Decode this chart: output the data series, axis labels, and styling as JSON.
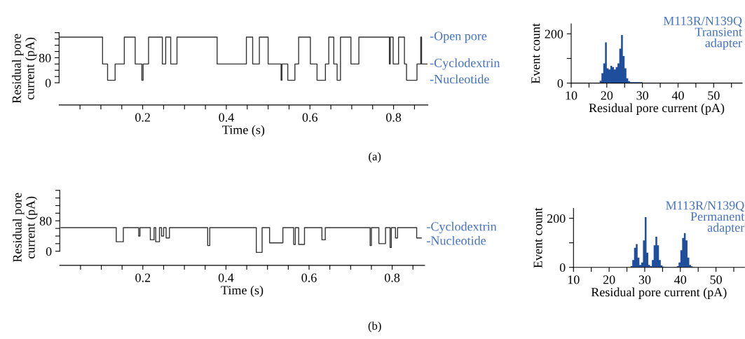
{
  "chart_data": [
    {
      "type": "step",
      "xlabel": "Time (s)",
      "ylabel": "Residual pore\ncurrent (pA)",
      "xlim": [
        0,
        0.882
      ],
      "ylim": [
        -71,
        162
      ],
      "xticks": [
        {
          "value": 0.05,
          "label": null
        },
        {
          "value": 0.1,
          "label": null
        },
        {
          "value": 0.15,
          "label": null
        },
        0.2,
        {
          "value": 0.25,
          "label": null
        },
        {
          "value": 0.3,
          "label": null
        },
        {
          "value": 0.35,
          "label": null
        },
        0.4,
        {
          "value": 0.45,
          "label": null
        },
        {
          "value": 0.5,
          "label": null
        },
        {
          "value": 0.55,
          "label": null
        },
        0.6,
        {
          "value": 0.65,
          "label": null
        },
        {
          "value": 0.7,
          "label": null
        },
        {
          "value": 0.75,
          "label": null
        },
        0.8,
        {
          "value": 0.85,
          "label": null
        }
      ],
      "yticks": [
        0,
        {
          "value": 20,
          "label": null
        },
        {
          "value": 40,
          "label": null
        },
        {
          "value": 60,
          "label": null
        },
        80,
        {
          "value": 100,
          "label": null
        },
        {
          "value": 120,
          "label": null
        },
        {
          "value": 140,
          "label": null
        },
        {
          "value": 160,
          "label": null
        }
      ],
      "series": [
        {
          "color": "#333333",
          "x": [
            0,
            0.104,
            0.116,
            0.134,
            0.156,
            0.182,
            0.198,
            0.201,
            0.214,
            0.247,
            0.255,
            0.267,
            0.282,
            0.378,
            0.448,
            0.463,
            0.479,
            0.5,
            0.531,
            0.533,
            0.547,
            0.564,
            0.573,
            0.601,
            0.617,
            0.637,
            0.645,
            0.657,
            0.665,
            0.673,
            0.698,
            0.717,
            0.79,
            0.792,
            0.799,
            0.812,
            0.826,
            0.831,
            0.856,
            0.865,
            0.867,
            0.88
          ],
          "values": [
            146,
            60,
            8,
            60,
            146,
            60,
            8,
            60,
            146,
            60,
            146,
            60,
            146,
            60,
            146,
            60,
            146,
            60,
            8,
            60,
            8,
            60,
            146,
            60,
            8,
            60,
            146,
            60,
            8,
            146,
            60,
            146,
            60,
            146,
            60,
            146,
            60,
            8,
            60,
            146,
            60,
            60
          ]
        }
      ],
      "annotations": [
        "-Open pore",
        "-Cyclodextrin",
        "-Nucleotide",
        "(a)"
      ]
    },
    {
      "type": "histogram",
      "xlabel": "Residual pore current (pA)",
      "ylabel": "Event count",
      "xlim": [
        10,
        58
      ],
      "ylim": [
        0,
        240
      ],
      "xticks": [
        10,
        {
          "value": 15,
          "label": null
        },
        20,
        {
          "value": 25,
          "label": null
        },
        30,
        {
          "value": 35,
          "label": null
        },
        40,
        {
          "value": 45,
          "label": null
        },
        50,
        {
          "value": 55,
          "label": null
        }
      ],
      "yticks": [
        0,
        {
          "value": 100,
          "label": null
        },
        200
      ],
      "color": "#1f4e9c",
      "bins": [
        17,
        18,
        18.5,
        19,
        19.5,
        20,
        20.5,
        21,
        21.5,
        22,
        22.5,
        23,
        23.5,
        24,
        24.5,
        25,
        25.5,
        26,
        26.5,
        27,
        30,
        50
      ],
      "values": [
        2,
        10,
        40,
        80,
        165,
        60,
        55,
        70,
        65,
        55,
        65,
        80,
        140,
        195,
        110,
        60,
        20,
        8,
        4,
        4,
        2
      ],
      "annotations": [
        "M113R/N139Q\nTransient\nadapter"
      ]
    },
    {
      "type": "step",
      "xlabel": "Time (s)",
      "ylabel": "Residual pore\ncurrent (pA)",
      "xlim": [
        0,
        0.878
      ],
      "ylim": [
        -37,
        162
      ],
      "xticks": [
        {
          "value": 0.05,
          "label": null
        },
        {
          "value": 0.1,
          "label": null
        },
        {
          "value": 0.15,
          "label": null
        },
        0.2,
        {
          "value": 0.25,
          "label": null
        },
        {
          "value": 0.3,
          "label": null
        },
        {
          "value": 0.35,
          "label": null
        },
        0.4,
        {
          "value": 0.45,
          "label": null
        },
        {
          "value": 0.5,
          "label": null
        },
        {
          "value": 0.55,
          "label": null
        },
        0.6,
        {
          "value": 0.65,
          "label": null
        },
        {
          "value": 0.7,
          "label": null
        },
        {
          "value": 0.75,
          "label": null
        },
        0.8,
        {
          "value": 0.85,
          "label": null
        }
      ],
      "yticks": [
        0,
        {
          "value": 20,
          "label": null
        },
        {
          "value": 40,
          "label": null
        },
        {
          "value": 60,
          "label": null
        },
        80,
        {
          "value": 100,
          "label": null
        },
        {
          "value": 120,
          "label": null
        },
        {
          "value": 140,
          "label": null
        },
        {
          "value": 160,
          "label": null
        }
      ],
      "series": [
        {
          "color": "#333333",
          "x": [
            0.003,
            0.136,
            0.153,
            0.19,
            0.193,
            0.218,
            0.227,
            0.231,
            0.24,
            0.245,
            0.25,
            0.256,
            0.264,
            0.356,
            0.361,
            0.473,
            0.487,
            0.505,
            0.537,
            0.563,
            0.567,
            0.575,
            0.589,
            0.631,
            0.639,
            0.747,
            0.75,
            0.768,
            0.784,
            0.795,
            0.798,
            0.808,
            0.813,
            0.859,
            0.87
          ],
          "values": [
            62,
            25,
            62,
            40,
            62,
            30,
            62,
            25,
            62,
            40,
            62,
            35,
            62,
            15,
            62,
            -3,
            62,
            22,
            62,
            18,
            62,
            18,
            62,
            30,
            62,
            15,
            62,
            20,
            62,
            10,
            62,
            35,
            62,
            35,
            35
          ]
        }
      ],
      "annotations": [
        "-Cyclodextrin",
        "-Nucleotide",
        "(b)"
      ]
    },
    {
      "type": "histogram",
      "xlabel": "Residual pore current (pA)",
      "ylabel": "Event count",
      "xlim": [
        10,
        58
      ],
      "ylim": [
        0,
        240
      ],
      "xticks": [
        10,
        {
          "value": 15,
          "label": null
        },
        20,
        {
          "value": 25,
          "label": null
        },
        30,
        {
          "value": 35,
          "label": null
        },
        40,
        {
          "value": 45,
          "label": null
        },
        50,
        {
          "value": 55,
          "label": null
        }
      ],
      "yticks": [
        0,
        {
          "value": 100,
          "label": null
        },
        200
      ],
      "color": "#1f4e9c",
      "bins": [
        26,
        26.5,
        27,
        27.5,
        28,
        28.5,
        29,
        29.5,
        30,
        30.5,
        31,
        31.5,
        32,
        32.5,
        33,
        33.5,
        34,
        34.5,
        35,
        35.5,
        36,
        36.5,
        37,
        37.5,
        38,
        38.5,
        39,
        39.5,
        40,
        40.5,
        41,
        41.5,
        42,
        42.5,
        43,
        43.5,
        44
      ],
      "values": [
        5,
        30,
        80,
        95,
        40,
        10,
        20,
        110,
        205,
        60,
        10,
        5,
        30,
        90,
        125,
        90,
        30,
        8,
        3,
        2,
        1,
        2,
        1,
        1,
        2,
        2,
        5,
        20,
        70,
        120,
        140,
        110,
        40,
        10,
        4,
        1
      ],
      "annotations": [
        "M113R/N139Q\nPermanent\nadapter"
      ]
    }
  ]
}
